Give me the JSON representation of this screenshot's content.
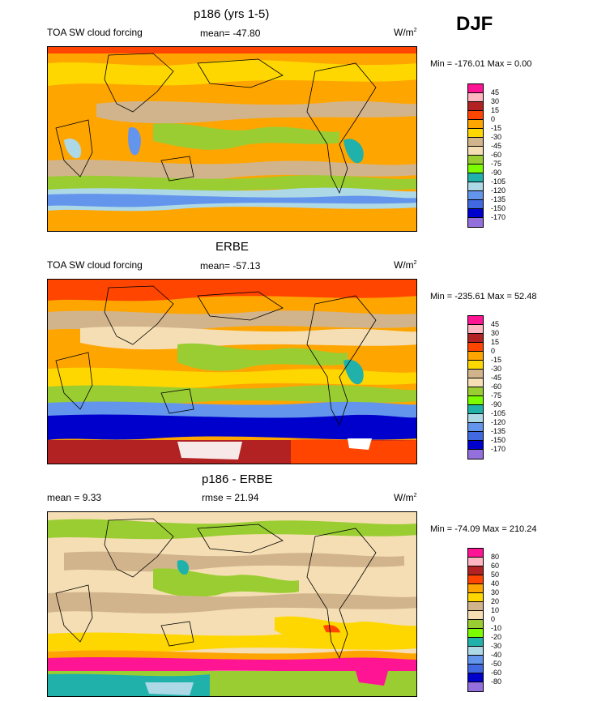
{
  "season": "DJF",
  "panels": [
    {
      "title": "p186 (yrs 1-5)",
      "left_label": "TOA SW cloud forcing",
      "center_label": "mean= -47.80",
      "units": "W/m",
      "units_sup": "2",
      "minmax": "Min = -176.01 Max =   0.00",
      "colorbar": {
        "ticks": [
          "45",
          "30",
          "15",
          "0",
          "-15",
          "-30",
          "-45",
          "-60",
          "-75",
          "-90",
          "-105",
          "-120",
          "-135",
          "-150",
          "-170"
        ],
        "colors": [
          "#ff1493",
          "#ffb6c1",
          "#b22222",
          "#ff4500",
          "#ffa500",
          "#ffd700",
          "#d2b48c",
          "#f5deb3",
          "#9acd32",
          "#7cfc00",
          "#20b2aa",
          "#add8e6",
          "#6495ed",
          "#4169e1",
          "#0000cd",
          "#9370db"
        ]
      }
    },
    {
      "title": "ERBE",
      "left_label": "TOA SW cloud forcing",
      "center_label": "mean= -57.13",
      "units": "W/m",
      "units_sup": "2",
      "minmax": "Min = -235.61 Max =  52.48",
      "colorbar": {
        "ticks": [
          "45",
          "30",
          "15",
          "0",
          "-15",
          "-30",
          "-45",
          "-60",
          "-75",
          "-90",
          "-105",
          "-120",
          "-135",
          "-150",
          "-170"
        ],
        "colors": [
          "#ff1493",
          "#ffb6c1",
          "#b22222",
          "#ff4500",
          "#ffa500",
          "#ffd700",
          "#d2b48c",
          "#f5deb3",
          "#9acd32",
          "#7cfc00",
          "#20b2aa",
          "#add8e6",
          "#6495ed",
          "#4169e1",
          "#0000cd",
          "#9370db"
        ]
      }
    },
    {
      "title": "p186 - ERBE",
      "left_label": "mean =   9.33",
      "center_label": "rmse =  21.94",
      "units": "W/m",
      "units_sup": "2",
      "minmax": "Min = -74.09 Max = 210.24",
      "colorbar": {
        "ticks": [
          "80",
          "60",
          "50",
          "40",
          "30",
          "20",
          "10",
          "0",
          "-10",
          "-20",
          "-30",
          "-40",
          "-50",
          "-60",
          "-80"
        ],
        "colors": [
          "#ff1493",
          "#ffb6c1",
          "#b22222",
          "#ff4500",
          "#ffa500",
          "#ffd700",
          "#d2b48c",
          "#f5deb3",
          "#9acd32",
          "#7cfc00",
          "#20b2aa",
          "#add8e6",
          "#6495ed",
          "#4169e1",
          "#0000cd",
          "#9370db"
        ]
      }
    }
  ],
  "chart_data": [
    {
      "type": "heatmap",
      "title": "p186 (yrs 1-5)",
      "variable": "TOA SW cloud forcing",
      "mean": -47.8,
      "min": -176.01,
      "max": 0.0,
      "units": "W/m2",
      "levels": [
        45,
        30,
        15,
        0,
        -15,
        -30,
        -45,
        -60,
        -75,
        -90,
        -105,
        -120,
        -135,
        -150,
        -170
      ]
    },
    {
      "type": "heatmap",
      "title": "ERBE",
      "variable": "TOA SW cloud forcing",
      "mean": -57.13,
      "min": -235.61,
      "max": 52.48,
      "units": "W/m2",
      "levels": [
        45,
        30,
        15,
        0,
        -15,
        -30,
        -45,
        -60,
        -75,
        -90,
        -105,
        -120,
        -135,
        -150,
        -170
      ]
    },
    {
      "type": "heatmap",
      "title": "p186 - ERBE",
      "mean": 9.33,
      "rmse": 21.94,
      "min": -74.09,
      "max": 210.24,
      "units": "W/m2",
      "levels": [
        80,
        60,
        50,
        40,
        30,
        20,
        10,
        0,
        -10,
        -20,
        -30,
        -40,
        -50,
        -60,
        -80
      ]
    }
  ]
}
